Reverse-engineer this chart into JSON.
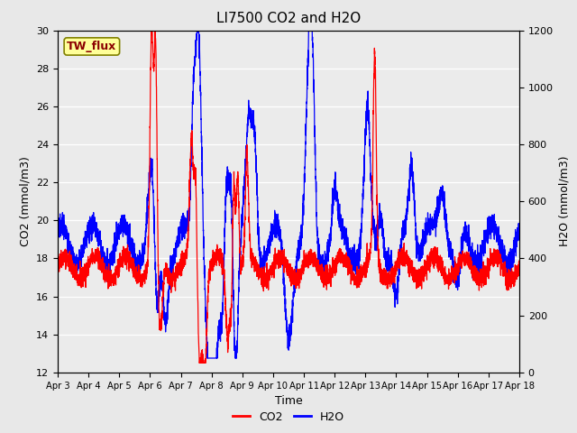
{
  "title": "LI7500 CO2 and H2O",
  "xlabel": "Time",
  "ylabel_left": "CO2 (mmol/m3)",
  "ylabel_right": "H2O (mmol/m3)",
  "annotation": "TW_flux",
  "co2_ylim": [
    12,
    30
  ],
  "h2o_ylim": [
    0,
    1200
  ],
  "co2_color": "#FF0000",
  "h2o_color": "#0000FF",
  "fig_facecolor": "#E8E8E8",
  "plot_facecolor": "#EBEBEB",
  "x_tick_labels": [
    "Apr 3",
    "Apr 4",
    "Apr 5",
    "Apr 6",
    "Apr 7",
    "Apr 8",
    "Apr 9",
    "Apr 10",
    "Apr 11",
    "Apr 12",
    "Apr 13",
    "Apr 14",
    "Apr 15",
    "Apr 16",
    "Apr 17",
    "Apr 18"
  ],
  "yticks_left": [
    12,
    14,
    16,
    18,
    20,
    22,
    24,
    26,
    28,
    30
  ],
  "yticks_right": [
    0,
    200,
    400,
    600,
    800,
    1000,
    1200
  ],
  "title_fontsize": 11,
  "axis_label_fontsize": 9,
  "tick_fontsize": 8,
  "legend_fontsize": 9,
  "line_width": 0.9,
  "annotation_fontsize": 9,
  "annotation_color": "#8B0000",
  "annotation_bg": "#FFFF99",
  "annotation_edge": "#808000"
}
